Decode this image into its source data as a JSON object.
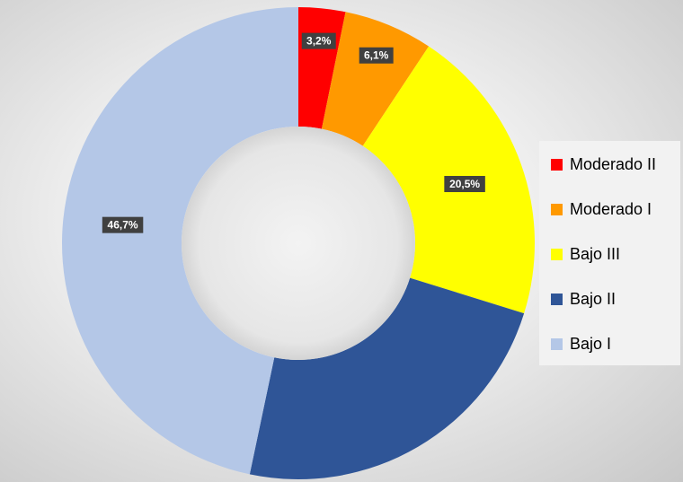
{
  "chart_data": {
    "type": "donut",
    "title": "",
    "categories": [
      "Moderado II",
      "Moderado I",
      "Bajo III",
      "Bajo II",
      "Bajo I"
    ],
    "values": [
      3.2,
      6.1,
      20.5,
      23.5,
      46.7
    ],
    "data_labels": [
      "3,2%",
      "6,1%",
      "20,5%",
      "",
      "46,7%"
    ],
    "colors": [
      "#FF0000",
      "#FF9900",
      "#FFFF00",
      "#2F5597",
      "#B4C7E7"
    ],
    "legend_position": "right",
    "units": "%"
  }
}
